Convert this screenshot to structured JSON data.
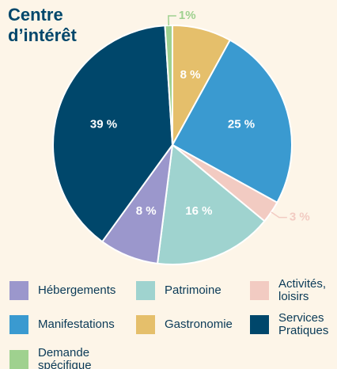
{
  "chart_data": {
    "type": "pie",
    "title": "Centre d’intérêt",
    "categories": [
      "Gastronomie",
      "Manifestations",
      "Activités, loisirs",
      "Patrimoine",
      "Hébergements",
      "Services Pratiques",
      "Demande spécifique"
    ],
    "values": [
      8,
      25,
      3,
      16,
      8,
      39,
      1
    ],
    "value_labels": [
      "8 %",
      "25 %",
      "3 %",
      "16 %",
      "8 %",
      "39 %",
      "1%"
    ],
    "colors": [
      "#e5bf6b",
      "#3a9ad0",
      "#f2cbc2",
      "#9fd3cf",
      "#9b97cc",
      "#00476b",
      "#9fd18f"
    ]
  }
}
